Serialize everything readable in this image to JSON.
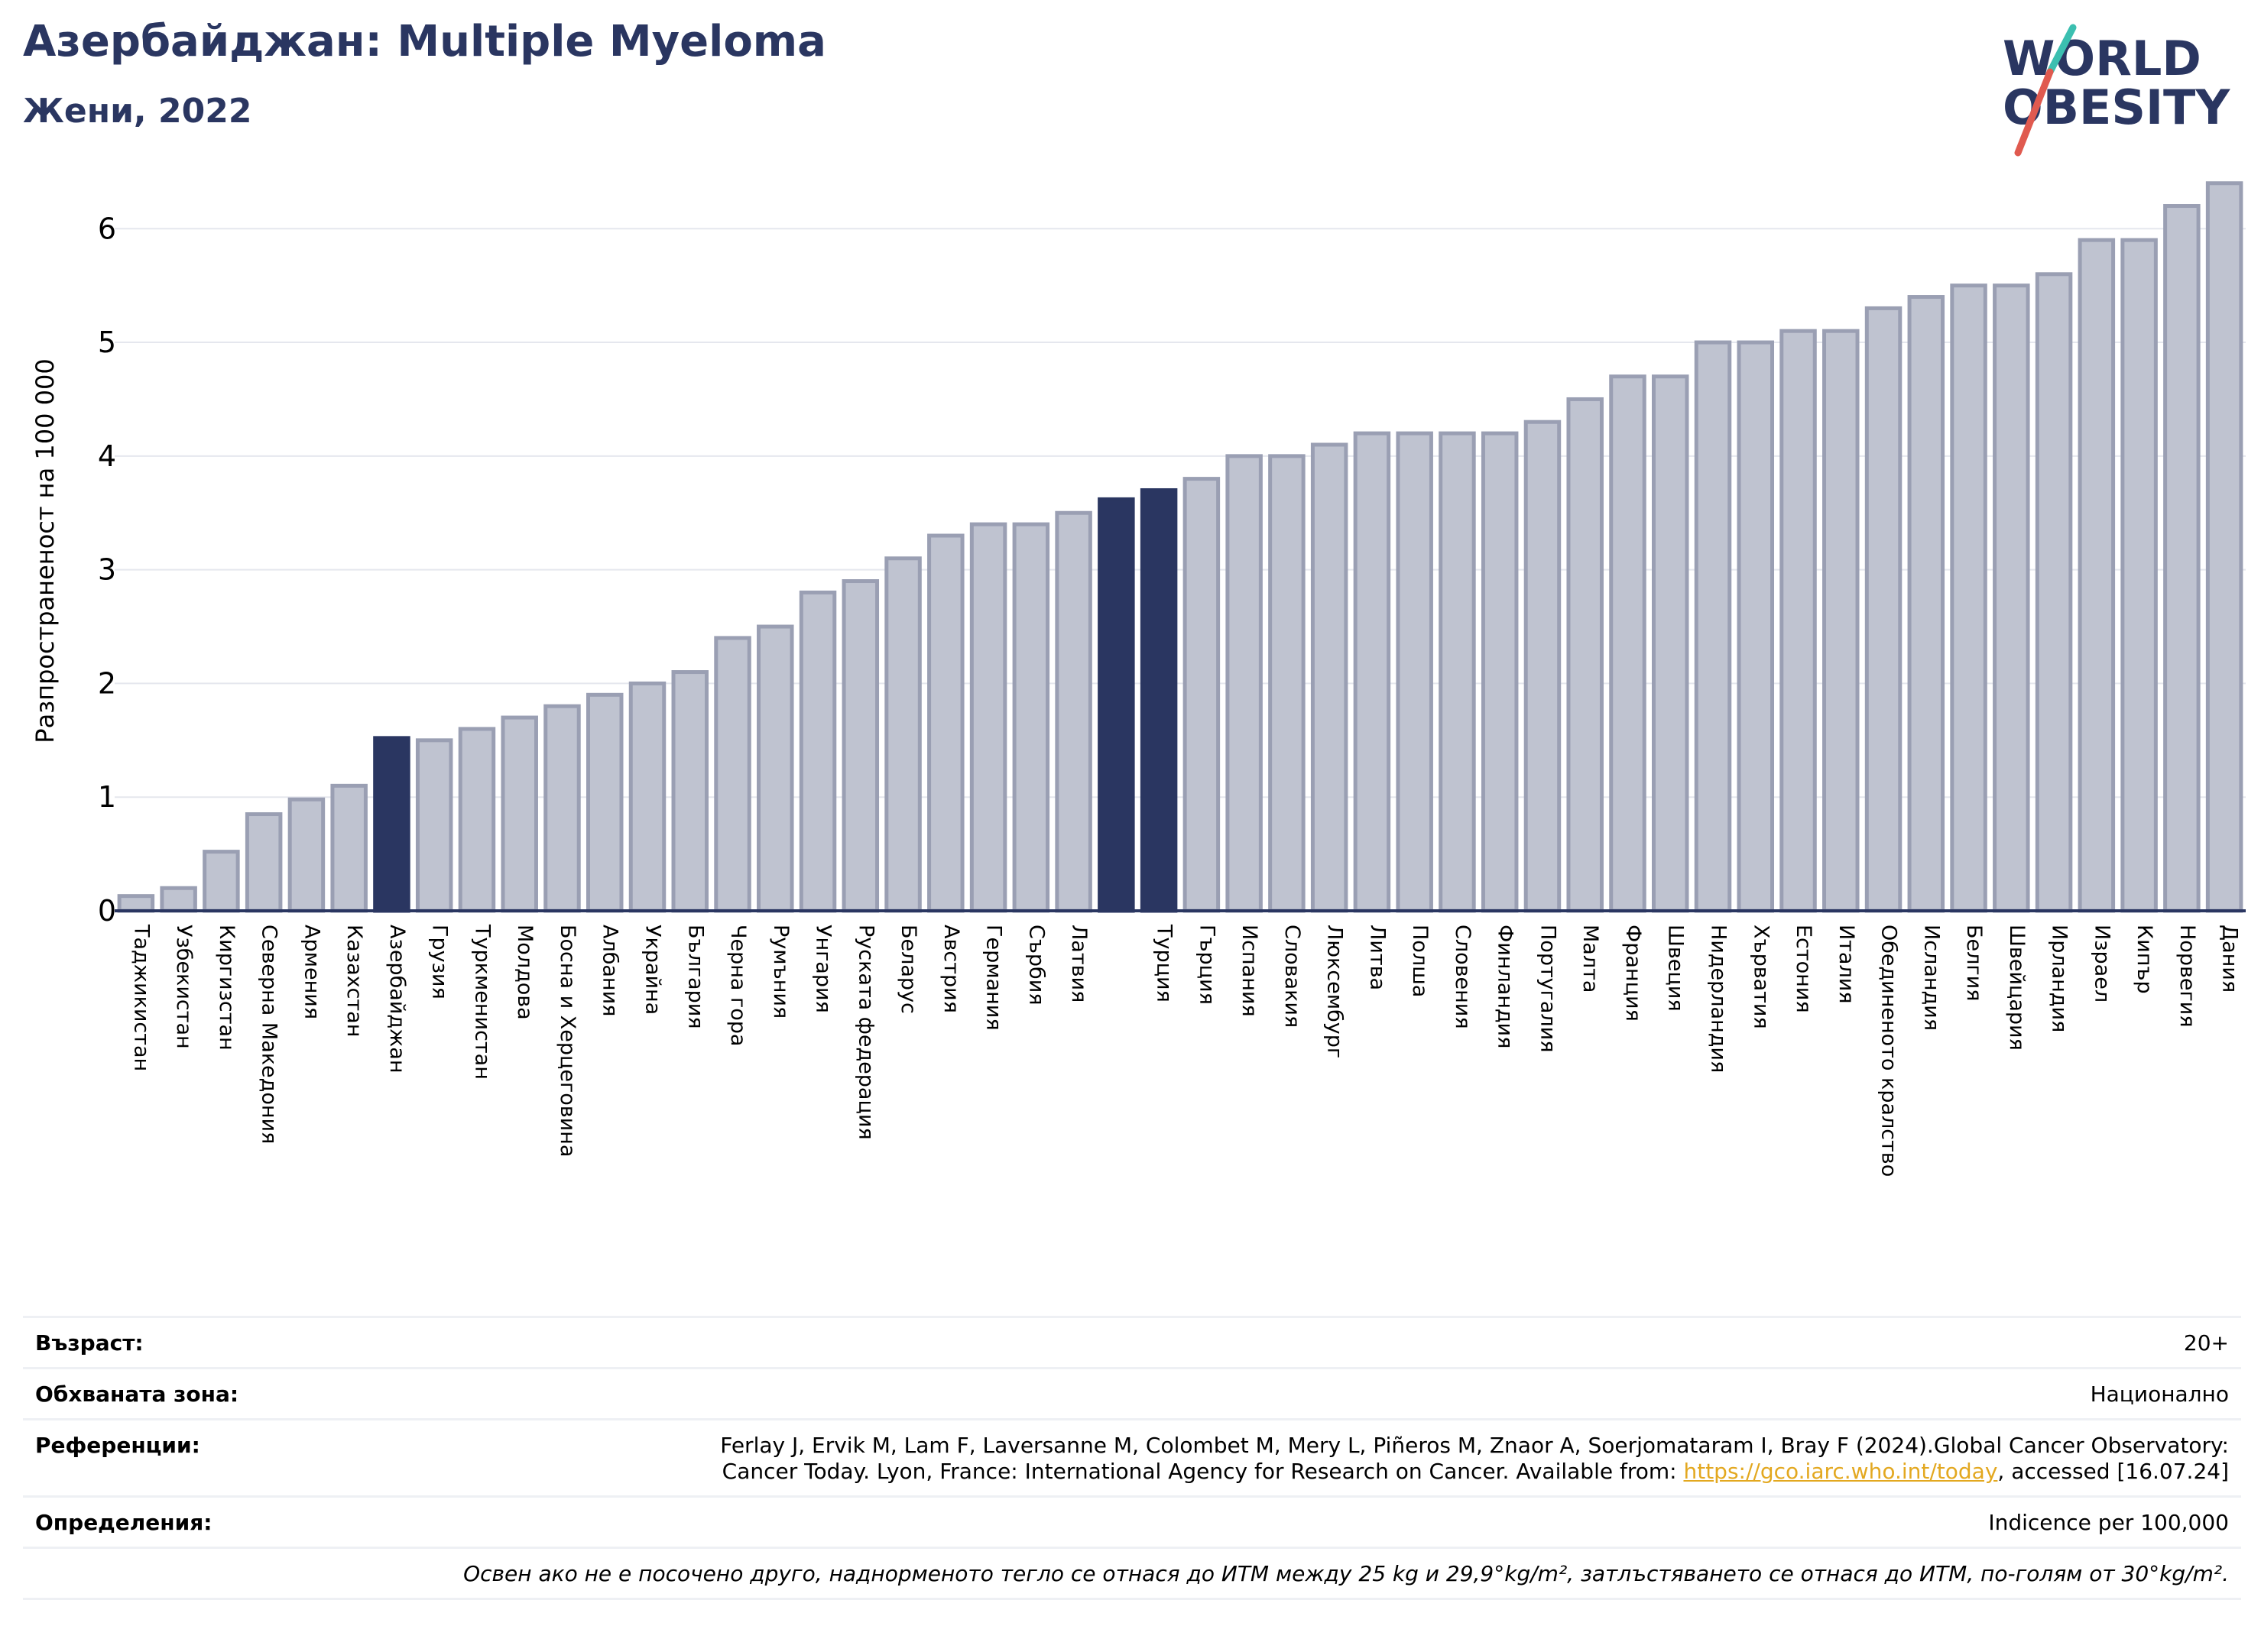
{
  "header": {
    "title": "Азербайджан: Multiple Myeloma",
    "subtitle": "Жени, 2022"
  },
  "logo": {
    "line1": "WORLD",
    "line2": "OBESITY",
    "colors": {
      "text": "#2a3661",
      "slash_teal": "#3bbfb0",
      "slash_red": "#e05a4f"
    }
  },
  "chart_data": {
    "type": "bar",
    "ylabel": "Разпространеност  на 100 000",
    "ylim": [
      0,
      6.6
    ],
    "yticks": [
      0,
      1,
      2,
      3,
      4,
      5,
      6
    ],
    "grid": true,
    "colors": {
      "default": "#bfc3d0",
      "default_edge": "#9a9fb3",
      "highlight": "#2a3661",
      "axis": "#2a3661",
      "grid": "#e5e7ee"
    },
    "highlighted": [
      "Азербайджан",
      "Турция"
    ],
    "categories": [
      "Таджикистан",
      "Узбекистан",
      "Киргизстан",
      "Северна Македония",
      "Армения",
      "Казахстан",
      "Азербайджан",
      "Грузия",
      "Туркменистан",
      "Молдова",
      "Босна и Херцеговина",
      "Албания",
      "Украйна",
      "България",
      "Черна гора",
      "Румъния",
      "Унгария",
      "Руската федерация",
      "Беларус",
      "Австрия",
      "Германия",
      "Сърбия",
      "Латвия",
      "",
      "Турция",
      "Гърция",
      "Испания",
      "Словакия",
      "Люксембург",
      "Литва",
      "Полша",
      "Словения",
      "Финландия",
      "Португалия",
      "Малта",
      "Франция",
      "Швеция",
      "Нидерландия",
      "Хърватия",
      "Естония",
      "Италия",
      "Обединеното кралство",
      "Исландия",
      "Белгия",
      "Швейцария",
      "Ирландия",
      "Израел",
      "Кипър",
      "Норвегия",
      "Дания"
    ],
    "values": [
      0.13,
      0.2,
      0.52,
      0.85,
      0.98,
      1.1,
      1.52,
      1.5,
      1.6,
      1.7,
      1.8,
      1.9,
      2.0,
      2.1,
      2.4,
      2.5,
      2.8,
      2.9,
      3.1,
      3.3,
      3.4,
      3.4,
      3.5,
      3.62,
      3.7,
      3.8,
      4.0,
      4.0,
      4.1,
      4.2,
      4.2,
      4.2,
      4.2,
      4.3,
      4.5,
      4.7,
      4.7,
      5.0,
      5.0,
      5.1,
      5.1,
      5.3,
      5.4,
      5.5,
      5.5,
      5.6,
      5.9,
      5.9,
      6.2,
      6.4
    ]
  },
  "info": {
    "rows": [
      {
        "label": "Възраст:",
        "value": "20+"
      },
      {
        "label": "Обхваната зона:",
        "value": "Национално"
      },
      {
        "label": "Референции:",
        "value_line1": "Ferlay J, Ervik M, Lam F, Laversanne M, Colombet M, Mery L, Piñeros M, Znaor A, Soerjomataram I, Bray F (2024).Global Cancer Observatory:",
        "value_line2_pre": "Cancer Today. Lyon, France: International Agency for Research on Cancer. Available from: ",
        "link": "https://gco.iarc.who.int/today",
        "value_line2_post": ", accessed [16.07.24]"
      },
      {
        "label": "Определения:",
        "value": "Indicence per 100,000"
      }
    ],
    "note": "Освен ако не е посочено друго, наднорменото тегло се отнася до ИТМ между 25 kg и 29,9°kg/m², затлъстяването се отнася до ИТМ, по-голям от 30°kg/m²."
  }
}
